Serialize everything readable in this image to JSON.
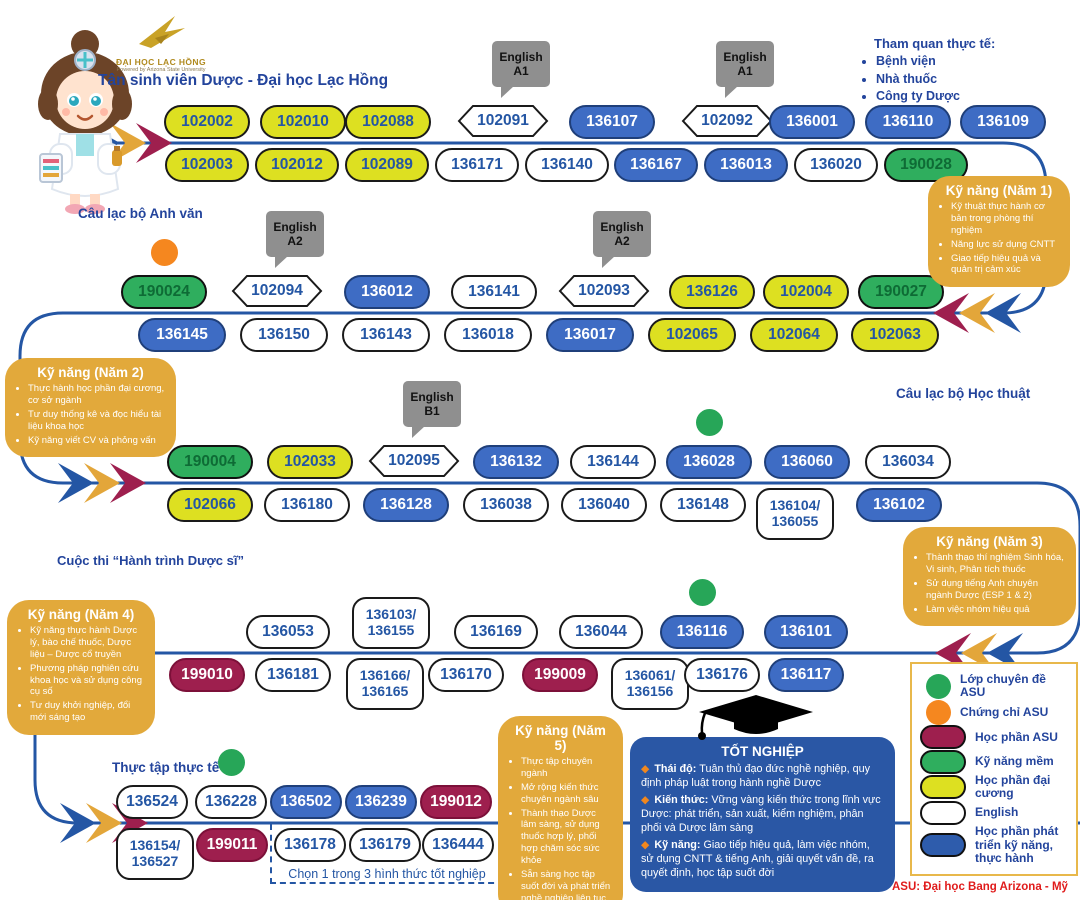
{
  "page": {
    "title": "Tân sinh viên Dược - Đại học Lạc Hồng"
  },
  "logo": {
    "name": "ĐẠI HỌC LẠC HỒNG",
    "tagline": "Powered by Arizona State University"
  },
  "field_trip": {
    "title": "Tham quan thực tế:",
    "items": [
      "Bệnh viện",
      "Nhà thuốc",
      "Công ty Dược"
    ]
  },
  "labels": {
    "english_club": "Câu lạc bộ Anh văn",
    "academic_club": "Câu lạc bộ Học thuật",
    "contest": "Cuộc thi “Hành trình Dược sĩ”",
    "internship": "Thực tập thực tế",
    "graduation_choice": "Chọn 1 trong 3 hình thức tốt nghiệp"
  },
  "skills": [
    {
      "title": "Kỹ năng (Năm 1)",
      "items": [
        "Kỹ thuật thực hành cơ bản trong phòng thí nghiệm",
        "Năng lực sử dụng CNTT",
        "Giao tiếp hiệu quả và quản trị cảm xúc"
      ]
    },
    {
      "title": "Kỹ năng (Năm 2)",
      "items": [
        "Thực hành học phần đại cương, cơ sở ngành",
        "Tư duy thống kê và đọc hiểu tài liệu khoa học",
        "Kỹ năng viết CV và phỏng vấn"
      ]
    },
    {
      "title": "Kỹ năng (Năm 3)",
      "items": [
        "Thành thạo thí nghiệm Sinh hóa, Vi sinh, Phân tích thuốc",
        "Sử dụng tiếng Anh chuyên ngành Dược (ESP 1 & 2)",
        "Làm việc nhóm hiệu quả"
      ]
    },
    {
      "title": "Kỹ năng (Năm 4)",
      "items": [
        "Kỹ năng thực hành Dược lý, bào chế thuốc, Dược liệu – Dược cổ truyền",
        "Phương pháp nghiên cứu khoa học và sử dụng công cụ số",
        "Tư duy khởi nghiệp, đổi mới sáng tạo"
      ]
    },
    {
      "title": "Kỹ năng (Năm 5)",
      "items": [
        "Thực tập chuyên ngành",
        "Mở rộng kiến thức chuyên ngành sâu",
        "Thành thạo Dược lâm sàng, sử dụng thuốc hợp lý, phối hợp chăm sóc sức khỏe",
        "Sẵn sàng học tập suốt đời và phát triển nghề nghiệp liên tục"
      ]
    }
  ],
  "graduation": {
    "title": "TỐT NGHIỆP",
    "items": [
      {
        "label": "Thái độ:",
        "text": "Tuân thủ đạo đức nghề nghiệp, quy định pháp luật trong hành nghề Dược"
      },
      {
        "label": "Kiến thức:",
        "text": "Vững vàng kiến thức trong lĩnh vực Dược: phát triển, sản xuất, kiểm nghiệm, phân phối và Dược lâm sàng"
      },
      {
        "label": "Kỹ năng:",
        "text": "Giao tiếp hiệu quả, làm việc nhóm, sử dụng CNTT & tiếng Anh, giải quyết vấn đề, ra quyết định, học tập suốt đời"
      }
    ]
  },
  "legend": {
    "items": [
      {
        "shape": "circle",
        "color": "#27a658",
        "label": "Lớp chuyên đề ASU"
      },
      {
        "shape": "circle",
        "color": "#f5871f",
        "label": "Chứng chỉ ASU"
      },
      {
        "shape": "pill",
        "color": "#9e1f4e",
        "label": "Học phần ASU"
      },
      {
        "shape": "pill",
        "color": "#2fae5e",
        "label": "Kỹ năng mềm"
      },
      {
        "shape": "pill",
        "color": "#dde021",
        "label": "Học phần đại cương"
      },
      {
        "shape": "pill",
        "color": "#ffffff",
        "label": "English"
      },
      {
        "shape": "pill",
        "color": "#2e5cac",
        "label": "Học phần phát triển kỹ năng, thực hành"
      }
    ],
    "footnote": "ASU: Đại học Bang Arizona - Mỹ"
  },
  "rows": [
    {
      "top": [
        {
          "code": "102002",
          "type": "general"
        },
        {
          "code": "102010",
          "type": "general"
        },
        {
          "code": "102088",
          "type": "general"
        },
        {
          "code": "102091",
          "type": "english-pointed",
          "bubble": "English A1"
        },
        {
          "code": "136107",
          "type": "practice"
        },
        {
          "code": "102092",
          "type": "english-pointed",
          "bubble": "English A1"
        },
        {
          "code": "136001",
          "type": "practice"
        },
        {
          "code": "136110",
          "type": "practice"
        },
        {
          "code": "136109",
          "type": "practice"
        }
      ],
      "bottom": [
        {
          "code": "102003",
          "type": "general"
        },
        {
          "code": "102012",
          "type": "general"
        },
        {
          "code": "102089",
          "type": "general"
        },
        {
          "code": "136171",
          "type": "english"
        },
        {
          "code": "136140",
          "type": "english"
        },
        {
          "code": "136167",
          "type": "practice"
        },
        {
          "code": "136013",
          "type": "practice"
        },
        {
          "code": "136020",
          "type": "english"
        },
        {
          "code": "190028",
          "type": "soft"
        }
      ]
    },
    {
      "top": [
        {
          "code": "190024",
          "type": "soft",
          "dot": "orange"
        },
        {
          "code": "102094",
          "type": "english-pointed",
          "bubble": "English A2"
        },
        {
          "code": "136012",
          "type": "practice"
        },
        {
          "code": "136141",
          "type": "english"
        },
        {
          "code": "102093",
          "type": "english-pointed",
          "bubble": "English A2"
        },
        {
          "code": "136126",
          "type": "general"
        },
        {
          "code": "102004",
          "type": "general"
        },
        {
          "code": "190027",
          "type": "soft"
        }
      ],
      "bottom": [
        {
          "code": "136145",
          "type": "practice"
        },
        {
          "code": "136150",
          "type": "english"
        },
        {
          "code": "136143",
          "type": "english"
        },
        {
          "code": "136018",
          "type": "english"
        },
        {
          "code": "136017",
          "type": "practice"
        },
        {
          "code": "102065",
          "type": "general"
        },
        {
          "code": "102064",
          "type": "general"
        },
        {
          "code": "102063",
          "type": "general"
        }
      ]
    },
    {
      "top": [
        {
          "code": "190004",
          "type": "soft"
        },
        {
          "code": "102033",
          "type": "general"
        },
        {
          "code": "102095",
          "type": "english-pointed",
          "bubble": "English B1"
        },
        {
          "code": "136132",
          "type": "practice"
        },
        {
          "code": "136144",
          "type": "english"
        },
        {
          "code": "136028",
          "type": "practice",
          "dot": "green"
        },
        {
          "code": "136060",
          "type": "practice"
        },
        {
          "code": "136034",
          "type": "english"
        }
      ],
      "bottom": [
        {
          "code": "102066",
          "type": "general"
        },
        {
          "code": "136180",
          "type": "english"
        },
        {
          "code": "136128",
          "type": "practice"
        },
        {
          "code": "136038",
          "type": "english"
        },
        {
          "code": "136040",
          "type": "english"
        },
        {
          "code": "136148",
          "type": "english"
        },
        {
          "code": "136104/136055",
          "type": "english"
        },
        {
          "code": "136102",
          "type": "practice"
        }
      ]
    },
    {
      "top": [
        {
          "code": "136053",
          "type": "english"
        },
        {
          "code": "136103/136155",
          "type": "english"
        },
        {
          "code": "136169",
          "type": "english"
        },
        {
          "code": "136044",
          "type": "english"
        },
        {
          "code": "136116",
          "type": "practice",
          "dot": "green"
        },
        {
          "code": "136101",
          "type": "practice"
        }
      ],
      "bottom": [
        {
          "code": "199010",
          "type": "asu"
        },
        {
          "code": "136181",
          "type": "english"
        },
        {
          "code": "136166/136165",
          "type": "english"
        },
        {
          "code": "136170",
          "type": "english"
        },
        {
          "code": "199009",
          "type": "asu"
        },
        {
          "code": "136061/136156",
          "type": "english"
        },
        {
          "code": "136176",
          "type": "english"
        },
        {
          "code": "136117",
          "type": "practice"
        }
      ]
    },
    {
      "top": [
        {
          "code": "136524",
          "type": "english"
        },
        {
          "code": "136228",
          "type": "english",
          "dot": "green"
        },
        {
          "code": "136502",
          "type": "practice"
        },
        {
          "code": "136239",
          "type": "practice"
        },
        {
          "code": "199012",
          "type": "asu"
        }
      ],
      "bottom": [
        {
          "code": "136154/136527",
          "type": "english"
        },
        {
          "code": "199011",
          "type": "asu"
        },
        {
          "code": "136178",
          "type": "english"
        },
        {
          "code": "136179",
          "type": "english"
        },
        {
          "code": "136444",
          "type": "english"
        }
      ]
    }
  ],
  "colors": {
    "flow_line": "#2456a4",
    "chevron_blue": "#2456a4",
    "chevron_gold": "#e3a63a",
    "chevron_maroon": "#9e1f4e",
    "callout": "#e2a93b",
    "bubble_gray": "#8f8f8f",
    "dot_green": "#27a658",
    "dot_orange": "#f5871f"
  }
}
